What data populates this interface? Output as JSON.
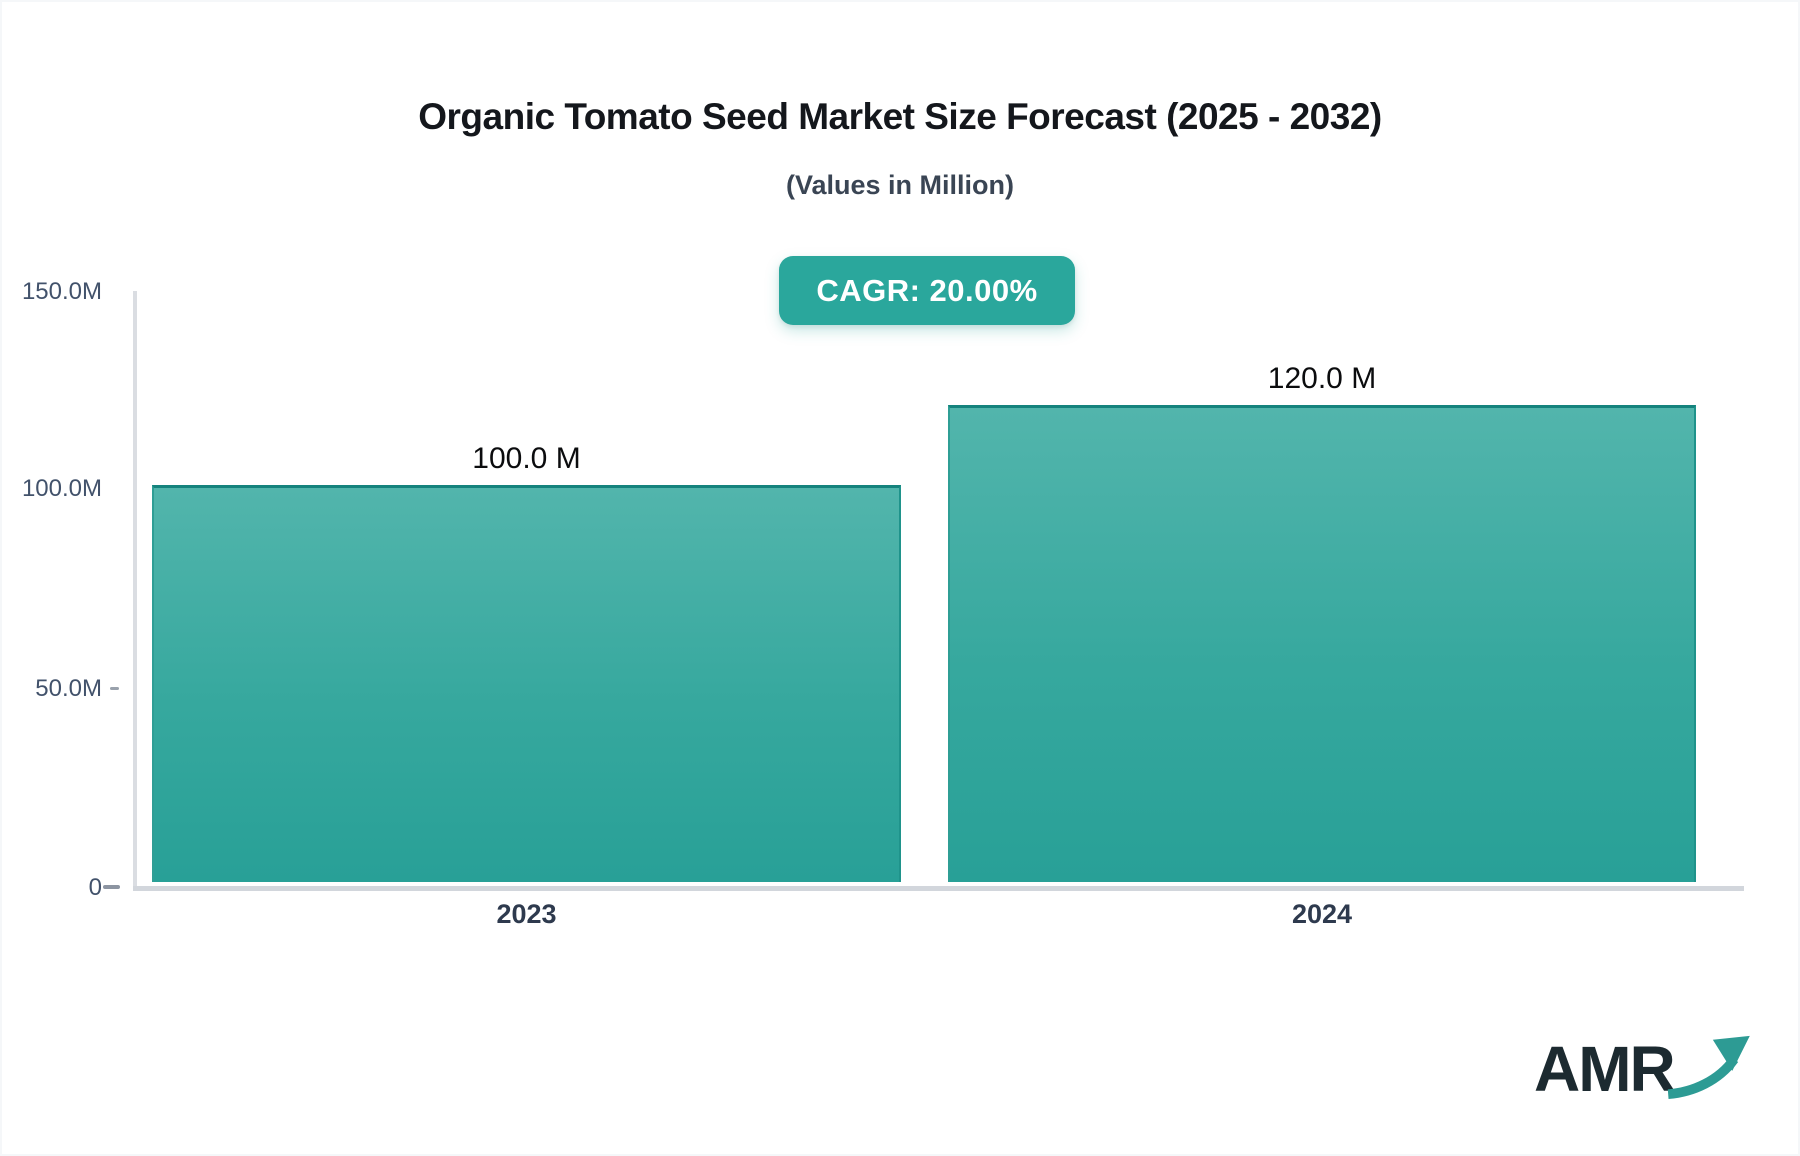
{
  "header": {
    "title": "Organic Tomato Seed Market Size Forecast (2025 - 2032)",
    "subtitle": "(Values in Million)",
    "cagr_label": "CAGR: 20.00%"
  },
  "chart_data": {
    "type": "bar",
    "title": "Organic Tomato Seed Market Size Forecast (2025 - 2032)",
    "subtitle": "(Values in Million)",
    "unit": "Million",
    "cagr": "20.00%",
    "categories": [
      "2023",
      "2024"
    ],
    "values": [
      100,
      120
    ],
    "value_labels": [
      "100.0 M",
      "120.0 M"
    ],
    "yticks": [
      "150.0M",
      "100.0M",
      "50.0M",
      "0"
    ],
    "ylim": [
      0,
      150
    ],
    "xlabel": "",
    "ylabel": "",
    "grid": false,
    "legend_position": "none"
  },
  "colors": {
    "bar_gradient_top": "#52b5ac",
    "bar_gradient_bottom": "#28a097",
    "bar_border": "#15837d",
    "badge_background": "#2aa79c",
    "badge_text": "#ffffff",
    "axis_line": "#d2d6dc",
    "y_label": "#42526b",
    "x_label": "#2e3a4e",
    "title_text": "#14171c",
    "logo_dark": "#1c2a30",
    "logo_teal": "#2d9b94"
  },
  "logo": {
    "text": "AMR",
    "arrow_icon": "trending-up-arrow-icon"
  }
}
